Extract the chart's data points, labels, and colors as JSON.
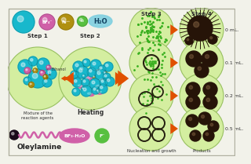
{
  "bg_color": "#f2f2ea",
  "labels_ml": [
    "0 mL.",
    "0.1 mL.",
    "0.2 mL.",
    "0.5 mL."
  ],
  "arrow_color": "#e05000",
  "text_bottom_left": "Oleylamine",
  "text_bottom_mid1": "Nucleation and growth",
  "text_bottom_mid2": "Products",
  "teal": "#18b8cc",
  "pink": "#d060a8",
  "olive": "#b09010",
  "lgreen": "#58c040",
  "circle_fill": "#d4eea0",
  "circle_edge": "#98c060",
  "dot_green": "#3ab020",
  "dark_brown": "#261408"
}
